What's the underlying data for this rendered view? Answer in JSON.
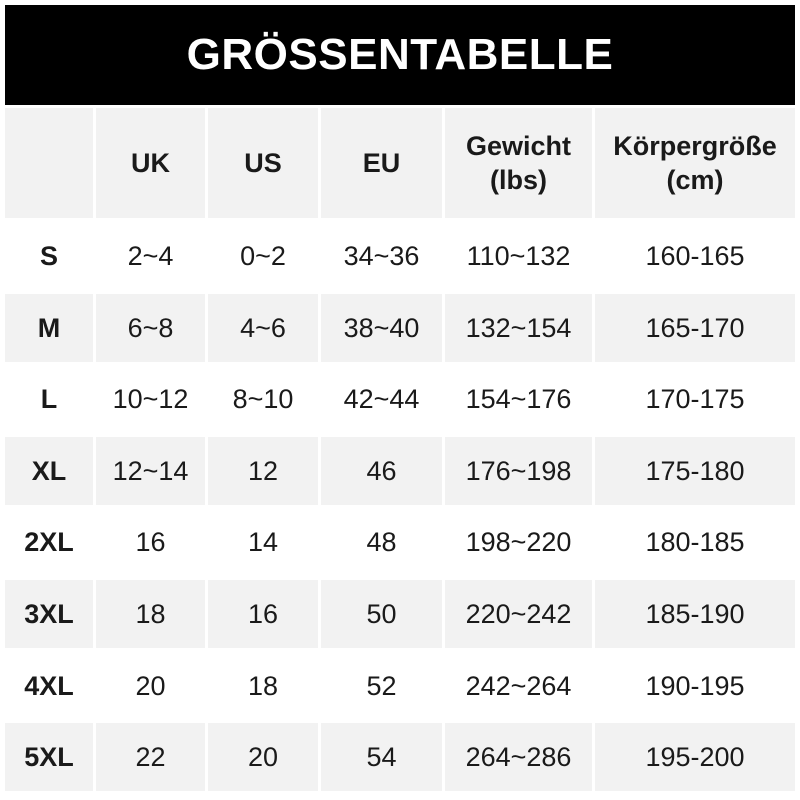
{
  "title": "GRÖSSENTABELLE",
  "table": {
    "header": [
      "UK",
      "US",
      "EU",
      "Gewicht (lbs)",
      "Körpergröße (cm)"
    ],
    "rows": [
      [
        "S",
        "2~4",
        "0~2",
        "34~36",
        "110~132",
        "160-165"
      ],
      [
        "M",
        "6~8",
        "4~6",
        "38~40",
        "132~154",
        "165-170"
      ],
      [
        "L",
        "10~12",
        "8~10",
        "42~44",
        "154~176",
        "170-175"
      ],
      [
        "XL",
        "12~14",
        "12",
        "46",
        "176~198",
        "175-180"
      ],
      [
        "2XL",
        "16",
        "14",
        "48",
        "198~220",
        "180-185"
      ],
      [
        "3XL",
        "18",
        "16",
        "50",
        "220~242",
        "185-190"
      ],
      [
        "4XL",
        "20",
        "18",
        "52",
        "242~264",
        "190-195"
      ],
      [
        "5XL",
        "22",
        "20",
        "54",
        "264~286",
        "195-200"
      ]
    ]
  }
}
